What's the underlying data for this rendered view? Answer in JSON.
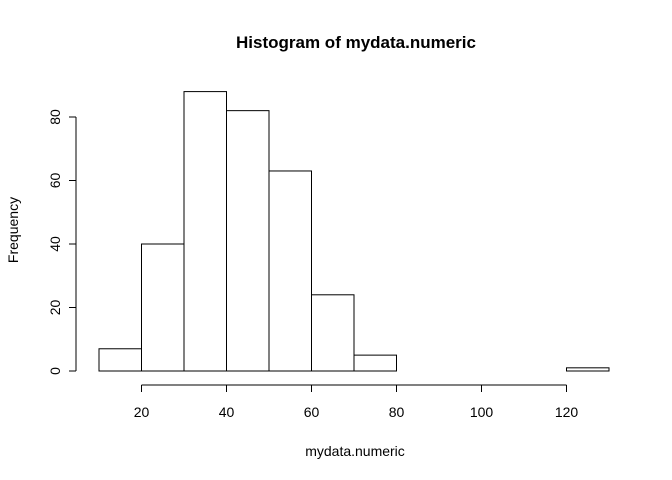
{
  "chart_data": {
    "type": "bar",
    "title": "Histogram of mydata.numeric",
    "xlabel": "mydata.numeric",
    "ylabel": "Frequency",
    "bins": [
      {
        "x0": 10,
        "x1": 20,
        "count": 7
      },
      {
        "x0": 20,
        "x1": 30,
        "count": 40
      },
      {
        "x0": 30,
        "x1": 40,
        "count": 88
      },
      {
        "x0": 40,
        "x1": 50,
        "count": 82
      },
      {
        "x0": 50,
        "x1": 60,
        "count": 63
      },
      {
        "x0": 60,
        "x1": 70,
        "count": 24
      },
      {
        "x0": 70,
        "x1": 80,
        "count": 5
      },
      {
        "x0": 80,
        "x1": 90,
        "count": 0
      },
      {
        "x0": 90,
        "x1": 100,
        "count": 0
      },
      {
        "x0": 100,
        "x1": 110,
        "count": 0
      },
      {
        "x0": 110,
        "x1": 120,
        "count": 0
      },
      {
        "x0": 120,
        "x1": 130,
        "count": 1
      }
    ],
    "xticks": [
      20,
      40,
      60,
      80,
      100,
      120
    ],
    "yticks": [
      0,
      20,
      40,
      60,
      80
    ],
    "xlim": [
      10,
      130
    ],
    "ylim": [
      0,
      88
    ],
    "grid": false,
    "bar_fill": "#ffffff",
    "bar_stroke": "#000000"
  }
}
